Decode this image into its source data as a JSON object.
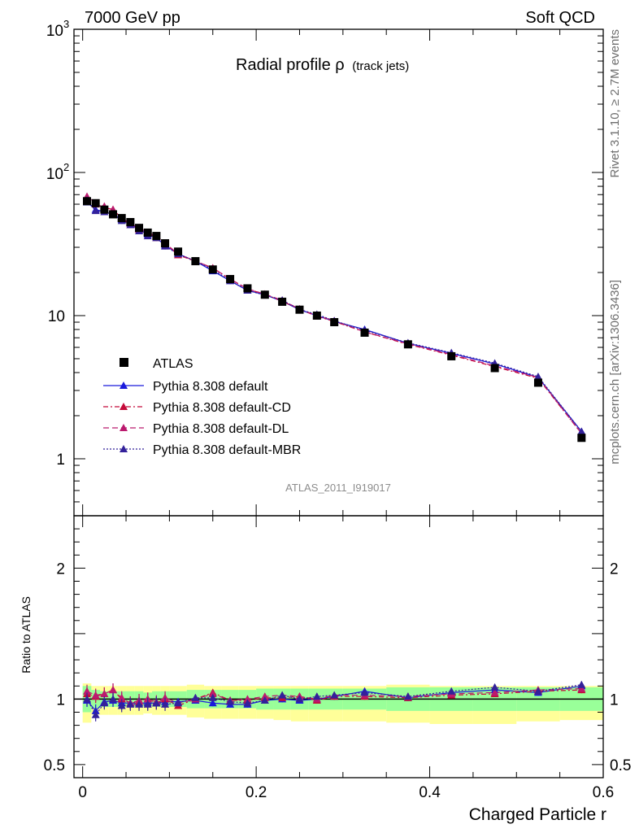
{
  "header": {
    "energy_label": "7000 GeV pp",
    "process_label": "Soft QCD",
    "rivet_label": "Rivet 3.1.10, ≥ 2.7M events",
    "mcplots_label": "mcplots.cern.ch [arXiv:1306.3436]"
  },
  "chart_data": {
    "type": "scatter",
    "title_main": "Radial profile ρ",
    "title_sub": "(track jets)",
    "watermark": "ATLAS_2011_I919017",
    "xlabel": "Charged Particle r",
    "ylabel_ratio": "Ratio to ATLAS",
    "xlim": [
      -0.01,
      0.6
    ],
    "ylim_main": [
      0.4,
      1000
    ],
    "ylim_ratio": [
      0.4,
      2.4
    ],
    "log_y_main": true,
    "x_ticks": [
      {
        "value": 0,
        "label": "0"
      },
      {
        "value": 0.2,
        "label": "0.2"
      },
      {
        "value": 0.4,
        "label": "0.4"
      },
      {
        "value": 0.6,
        "label": "0.6"
      }
    ],
    "y_ticks_main": [
      {
        "value": 1,
        "label": "1"
      },
      {
        "value": 10,
        "label": "10"
      },
      {
        "value": 100,
        "label": "10",
        "exp": "2"
      },
      {
        "value": 1000,
        "label": "10",
        "exp": "3"
      }
    ],
    "y_ticks_ratio": [
      {
        "value": 0.5,
        "label": "0.5"
      },
      {
        "value": 1,
        "label": "1"
      },
      {
        "value": 2,
        "label": "2"
      }
    ],
    "x": [
      0.005,
      0.015,
      0.025,
      0.035,
      0.045,
      0.055,
      0.065,
      0.075,
      0.085,
      0.095,
      0.11,
      0.13,
      0.15,
      0.17,
      0.19,
      0.21,
      0.23,
      0.25,
      0.27,
      0.29,
      0.325,
      0.375,
      0.425,
      0.475,
      0.525,
      0.575
    ],
    "data": {
      "name": "ATLAS",
      "values": [
        63,
        61,
        55,
        51,
        48,
        45,
        41,
        38,
        36,
        32,
        28,
        24,
        21,
        18,
        15.5,
        14,
        12.5,
        11,
        10,
        9,
        7.6,
        6.3,
        5.2,
        4.3,
        3.4,
        1.4
      ]
    },
    "bands": {
      "edges": [
        0,
        0.01,
        0.02,
        0.03,
        0.04,
        0.05,
        0.06,
        0.07,
        0.08,
        0.09,
        0.1,
        0.12,
        0.14,
        0.16,
        0.18,
        0.2,
        0.22,
        0.24,
        0.26,
        0.28,
        0.3,
        0.35,
        0.4,
        0.45,
        0.5,
        0.55,
        0.6
      ],
      "inner_low": [
        0.9,
        0.93,
        0.94,
        0.94,
        0.94,
        0.94,
        0.94,
        0.95,
        0.94,
        0.94,
        0.94,
        0.93,
        0.93,
        0.93,
        0.93,
        0.92,
        0.92,
        0.92,
        0.92,
        0.92,
        0.92,
        0.91,
        0.91,
        0.91,
        0.91,
        0.91
      ],
      "inner_high": [
        1.1,
        1.07,
        1.06,
        1.06,
        1.06,
        1.06,
        1.06,
        1.05,
        1.06,
        1.06,
        1.06,
        1.07,
        1.07,
        1.07,
        1.07,
        1.08,
        1.08,
        1.08,
        1.08,
        1.08,
        1.08,
        1.09,
        1.09,
        1.09,
        1.09,
        1.09
      ],
      "outer_low": [
        0.82,
        0.88,
        0.88,
        0.88,
        0.88,
        0.88,
        0.88,
        0.89,
        0.88,
        0.88,
        0.88,
        0.86,
        0.85,
        0.85,
        0.85,
        0.85,
        0.84,
        0.83,
        0.83,
        0.83,
        0.83,
        0.82,
        0.81,
        0.81,
        0.83,
        0.84
      ],
      "outer_high": [
        1.12,
        1.1,
        1.1,
        1.1,
        1.1,
        1.1,
        1.1,
        1.1,
        1.1,
        1.1,
        1.1,
        1.11,
        1.1,
        1.1,
        1.1,
        1.1,
        1.1,
        1.1,
        1.1,
        1.1,
        1.1,
        1.11,
        1.1,
        1.1,
        1.1,
        1.1
      ]
    },
    "series": [
      {
        "name": "Pythia 8.308 default",
        "color": "#1a1adc",
        "dash": "",
        "values": [
          62,
          55,
          53,
          51,
          47,
          44,
          40,
          37,
          35,
          31,
          27,
          24,
          20.5,
          17.5,
          15,
          14,
          12.6,
          11,
          10,
          9.1,
          8.0,
          6.4,
          5.45,
          4.6,
          3.7,
          1.55
        ],
        "ratio": [
          0.99,
          0.91,
          0.98,
          0.99,
          0.97,
          0.97,
          0.97,
          0.97,
          0.97,
          0.98,
          0.98,
          0.99,
          0.97,
          0.96,
          0.96,
          0.99,
          1.0,
          0.99,
          1.0,
          1.02,
          1.06,
          1.01,
          1.05,
          1.07,
          1.05,
          1.1
        ]
      },
      {
        "name": "Pythia 8.308 default-CD",
        "color": "#c40a3a",
        "dash": "6,3,2,3",
        "values": [
          66,
          60,
          57,
          55,
          48,
          43,
          40,
          38,
          35,
          32,
          26.5,
          24,
          21.5,
          18,
          15.3,
          14.1,
          12.6,
          11.1,
          9.9,
          9.1,
          7.7,
          6.3,
          5.3,
          4.4,
          3.65,
          1.5
        ],
        "ratio": [
          1.04,
          1.02,
          1.04,
          1.07,
          1.0,
          0.97,
          0.98,
          1.0,
          0.97,
          1.0,
          0.95,
          1.0,
          1.05,
          0.99,
          0.99,
          1.01,
          1.01,
          1.02,
          0.99,
          1.02,
          1.02,
          1.01,
          1.03,
          1.04,
          1.06,
          1.07
        ]
      },
      {
        "name": "Pythia 8.308 default-DL",
        "color": "#bb1a6e",
        "dash": "7,4",
        "values": [
          68,
          61,
          58,
          55,
          48,
          44,
          41,
          38,
          36,
          32,
          27,
          24,
          21.5,
          18,
          15.4,
          14.1,
          12.8,
          11.1,
          10,
          9.2,
          7.7,
          6.35,
          5.35,
          4.45,
          3.7,
          1.5
        ],
        "ratio": [
          1.06,
          1.03,
          1.04,
          1.07,
          1.01,
          0.97,
          0.99,
          1.0,
          0.98,
          1.01,
          0.97,
          1.0,
          1.04,
          0.99,
          1.0,
          1.02,
          1.03,
          1.02,
          1.0,
          1.03,
          1.03,
          1.02,
          1.04,
          1.05,
          1.07,
          1.08
        ]
      },
      {
        "name": "Pythia 8.308 default-MBR",
        "color": "#33219a",
        "dash": "2,2",
        "values": [
          64,
          54,
          53,
          51,
          46,
          43,
          39,
          36,
          35,
          30.5,
          27,
          24,
          21,
          17.5,
          15,
          13.9,
          12.8,
          11,
          10.2,
          9.2,
          7.9,
          6.45,
          5.5,
          4.65,
          3.75,
          1.55
        ],
        "ratio": [
          1.0,
          0.88,
          0.97,
          1.0,
          0.95,
          0.96,
          0.96,
          0.96,
          0.97,
          0.96,
          0.97,
          1.01,
          1.01,
          0.98,
          0.97,
          0.99,
          1.03,
          1.0,
          1.02,
          1.03,
          1.05,
          1.02,
          1.06,
          1.09,
          1.06,
          1.11
        ]
      }
    ]
  }
}
